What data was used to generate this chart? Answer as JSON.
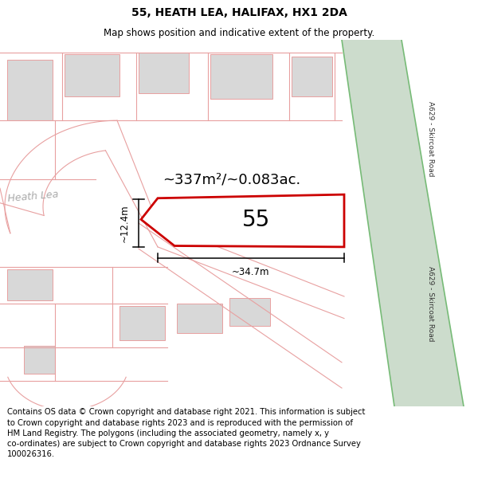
{
  "title": "55, HEATH LEA, HALIFAX, HX1 2DA",
  "subtitle": "Map shows position and indicative extent of the property.",
  "footer": "Contains OS data © Crown copyright and database right 2021. This information is subject\nto Crown copyright and database rights 2023 and is reproduced with the permission of\nHM Land Registry. The polygons (including the associated geometry, namely x, y\nco-ordinates) are subject to Crown copyright and database rights 2023 Ordnance Survey\n100026316.",
  "area_label": "~337m²/~0.083ac.",
  "number_label": "55",
  "dim_width": "~34.7m",
  "dim_height": "~12.4m",
  "road_label": "A629 - Skircoat Road",
  "street_label": "Heath Lea",
  "bg": "#ffffff",
  "road_fill": "#ccdccc",
  "road_stroke": "#77bb77",
  "plot_color": "#cc0000",
  "building_fill": "#d8d8d8",
  "building_ec": "#e8a0a0",
  "street_color": "#e8a0a0",
  "dim_color": "#000000",
  "title_fs": 10,
  "subtitle_fs": 8.5,
  "footer_fs": 7.2,
  "area_fs": 13,
  "number_fs": 20,
  "dim_fs": 8.5,
  "street_lbl_fs": 9
}
